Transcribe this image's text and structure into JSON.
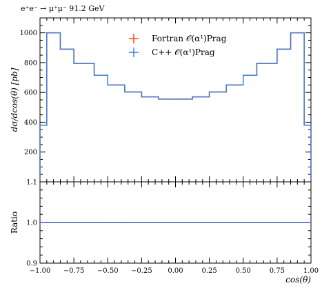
{
  "chart_data": [
    {
      "type": "line",
      "step": true,
      "title": "e⁺e⁻ → μ⁺μ⁻ 91.2 GeV",
      "ylabel": "dσ/dcos(θ) [pb]",
      "xlim": [
        -1.0,
        1.0
      ],
      "ylim": [
        0,
        1100
      ],
      "yticks": [
        200,
        400,
        600,
        800,
        1000
      ],
      "legend_position": "top-center",
      "bin_edges": [
        -1.0,
        -0.95,
        -0.85,
        -0.75,
        -0.6,
        -0.5,
        -0.375,
        -0.25,
        -0.125,
        0.0,
        0.125,
        0.25,
        0.375,
        0.5,
        0.6,
        0.75,
        0.85,
        0.95,
        1.0
      ],
      "series": [
        {
          "name": "Fortran 𝒪(α¹)Prag",
          "color": "#ff4500",
          "values": [
            380,
            1000,
            890,
            795,
            715,
            650,
            603,
            570,
            555,
            555,
            570,
            603,
            650,
            715,
            795,
            890,
            1000,
            380
          ]
        },
        {
          "name": "C++ 𝒪(α¹)Prag",
          "color": "#3b7dd8",
          "values": [
            380,
            1000,
            890,
            795,
            715,
            650,
            603,
            570,
            555,
            555,
            570,
            603,
            650,
            715,
            795,
            890,
            1000,
            380
          ]
        }
      ]
    },
    {
      "type": "line",
      "step": true,
      "ylabel": "Ratio",
      "xlabel": "cos(θ)",
      "xlim": [
        -1.0,
        1.0
      ],
      "ylim": [
        0.9,
        1.1
      ],
      "yticks": [
        0.9,
        1.0,
        1.1
      ],
      "ytick_labels": [
        "0.9",
        "1.0",
        "1.1"
      ],
      "xticks": [
        -1.0,
        -0.75,
        -0.5,
        -0.25,
        0.0,
        0.25,
        0.5,
        0.75,
        1.0
      ],
      "xtick_labels": [
        "−1.00",
        "−0.75",
        "−0.50",
        "−0.25",
        "0.00",
        "0.25",
        "0.50",
        "0.75",
        "1.00"
      ],
      "series": [
        {
          "name": "Fortran 𝒪(α¹)Prag",
          "color": "#ff4500",
          "values": [
            1.0,
            1.0,
            1.0,
            1.0,
            1.0,
            0.9995,
            1.0,
            1.0,
            1.0,
            1.0,
            1.0,
            1.0,
            1.0,
            1.0,
            1.0,
            1.0,
            1.0,
            1.0
          ]
        },
        {
          "name": "C++ 𝒪(α¹)Prag",
          "color": "#3b7dd8",
          "values": [
            1.0,
            1.0,
            1.0,
            1.0,
            1.0,
            1.0,
            1.0,
            1.0,
            1.0,
            1.0,
            1.0,
            1.0,
            1.0,
            1.0,
            1.0,
            1.0,
            1.0,
            1.0
          ]
        }
      ]
    }
  ]
}
